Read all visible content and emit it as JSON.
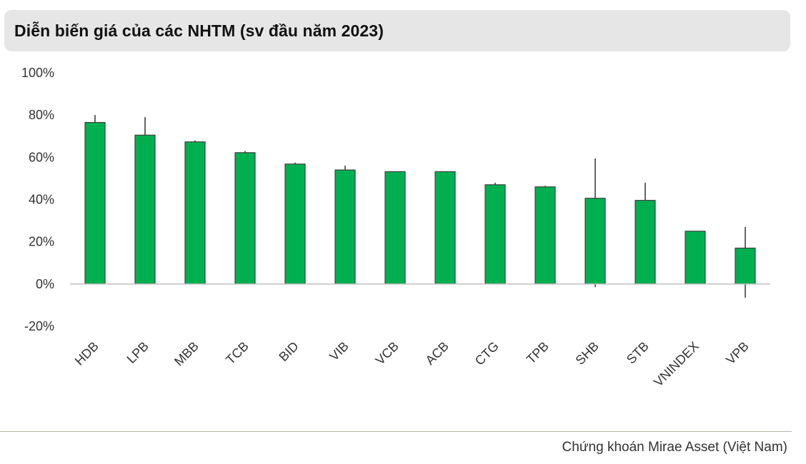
{
  "header": {
    "title": "Diễn biến giá của các NHTM (sv đầu năm 2023)"
  },
  "footer": {
    "source": "Chứng khoán Mirae Asset (Việt Nam)"
  },
  "colors": {
    "bar_fill": "#00b050",
    "bar_stroke": "#404040",
    "whisker": "#404040",
    "axis": "#bfbfbf"
  },
  "chart_data": {
    "type": "bar",
    "title": "Diễn biến giá của các NHTM (sv đầu năm 2023)",
    "xlabel": "",
    "ylabel": "",
    "ylim": [
      -20,
      100
    ],
    "yticks": [
      100,
      80,
      60,
      40,
      20,
      0,
      -20
    ],
    "ytick_labels": [
      "100%",
      "80%",
      "60%",
      "40%",
      "20%",
      "0%",
      "-20%"
    ],
    "grid": false,
    "legend": "none",
    "categories": [
      "HDB",
      "LPB",
      "MBB",
      "TCB",
      "BID",
      "VIB",
      "VCB",
      "ACB",
      "CTG",
      "TPB",
      "SHB",
      "STB",
      "VNINDEX",
      "VPB"
    ],
    "values": [
      76.5,
      70.5,
      67.3,
      62.2,
      56.8,
      54.0,
      53.2,
      53.2,
      47.0,
      46.0,
      40.6,
      39.6,
      25.0,
      17.0
    ],
    "high": [
      80.0,
      79.0,
      68.0,
      63.0,
      57.5,
      56.0,
      53.2,
      53.2,
      48.0,
      46.5,
      59.5,
      48.0,
      25.0,
      27.0
    ],
    "low": [
      76.5,
      70.5,
      67.3,
      62.2,
      56.8,
      54.0,
      53.2,
      53.2,
      47.0,
      46.0,
      -1.5,
      39.6,
      25.0,
      -6.5
    ]
  }
}
